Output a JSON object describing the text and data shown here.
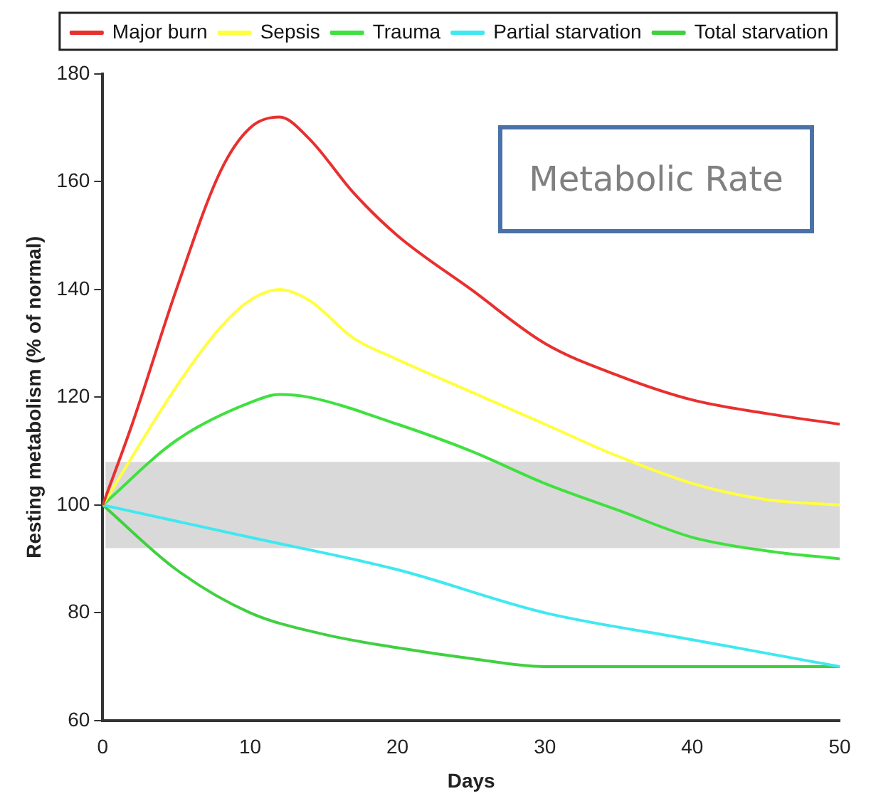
{
  "chart_data": {
    "type": "line",
    "xlabel": "Days",
    "ylabel": "Resting metabolism (% of normal)",
    "annotations": [
      "Metabolic Rate"
    ],
    "xlim": [
      0,
      50
    ],
    "xticks": [
      0,
      10,
      20,
      30,
      40,
      50
    ],
    "ylim": [
      60,
      180
    ],
    "yticks": [
      60,
      80,
      100,
      120,
      140,
      160,
      180
    ],
    "grid": false,
    "legend": "top",
    "marker": "none",
    "line_style": "solid",
    "bands": [
      {
        "axis": "y",
        "from": 92,
        "to": 108,
        "color": "#d9d9d9"
      }
    ],
    "series": [
      {
        "name": "Major burn",
        "color": "#e8302f",
        "x": [
          0,
          2,
          5,
          8,
          10,
          12,
          14,
          17,
          20,
          25,
          30,
          35,
          40,
          45,
          50
        ],
        "values": [
          100,
          115,
          140,
          162,
          170,
          172,
          168,
          158,
          150,
          140,
          130,
          124,
          119.5,
          117,
          115
        ]
      },
      {
        "name": "Sepsis",
        "color": "#ffff40",
        "x": [
          0,
          5,
          8,
          10,
          12,
          14,
          17,
          20,
          25,
          30,
          35,
          40,
          45,
          50
        ],
        "values": [
          100,
          122,
          133,
          138,
          140,
          138,
          131,
          127,
          121,
          115,
          109,
          104,
          101,
          100
        ]
      },
      {
        "name": "Trauma",
        "color": "#40e040",
        "x": [
          0,
          5,
          10,
          12,
          14,
          20,
          25,
          30,
          35,
          40,
          45,
          50
        ],
        "values": [
          100,
          112,
          119,
          120.5,
          120,
          115,
          110,
          104,
          99,
          94,
          91.5,
          90
        ]
      },
      {
        "name": "Partial starvation",
        "color": "#40e8f0",
        "x": [
          0,
          10,
          20,
          30,
          40,
          50
        ],
        "values": [
          100,
          94,
          88,
          80,
          75,
          70
        ]
      },
      {
        "name": "Total starvation",
        "color": "#40d040",
        "x": [
          0,
          5,
          10,
          15,
          20,
          25,
          30,
          40,
          50
        ],
        "values": [
          100,
          88,
          80,
          76,
          73.5,
          71.5,
          70,
          70,
          70
        ]
      }
    ]
  }
}
